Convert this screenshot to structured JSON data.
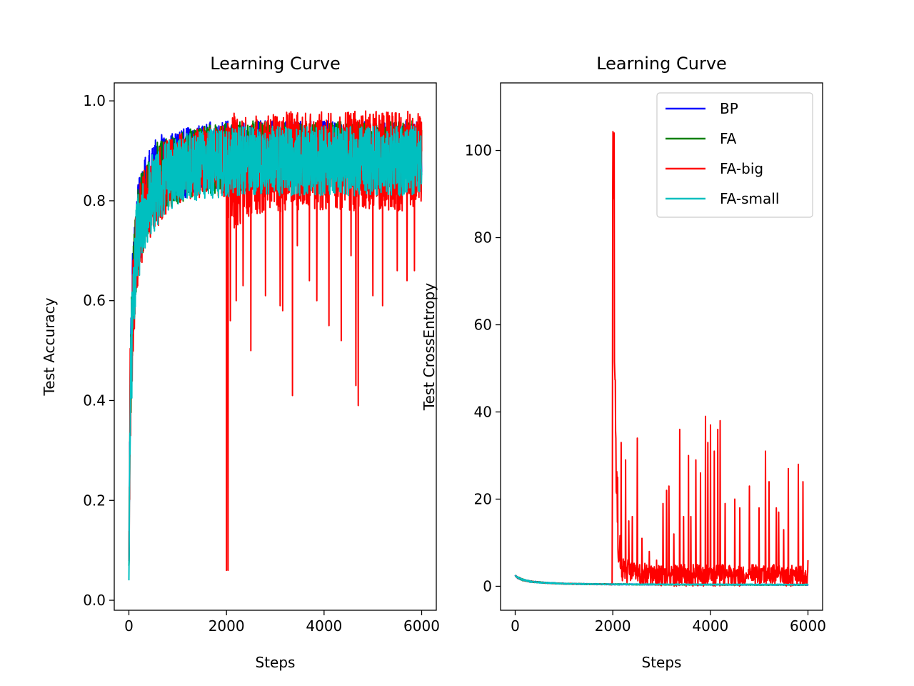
{
  "chart_data": [
    {
      "type": "line",
      "title": "Learning Curve",
      "xlabel": "Steps",
      "ylabel": "Test Accuracy",
      "xlim": [
        -300,
        6300
      ],
      "ylim": [
        -0.02,
        1.036
      ],
      "xticks": [
        0,
        2000,
        4000,
        6000
      ],
      "xtick_labels": [
        "0",
        "2000",
        "4000",
        "6000"
      ],
      "yticks": [
        0.0,
        0.2,
        0.4,
        0.6,
        0.8,
        1.0
      ],
      "ytick_labels": [
        "0.0",
        "0.2",
        "0.4",
        "0.6",
        "0.8",
        "1.0"
      ],
      "grid": false,
      "legend": null,
      "series": [
        {
          "name": "BP",
          "color": "#0000ff",
          "x": [
            0,
            30,
            80,
            150,
            250,
            400,
            600,
            900,
            1300,
            1800,
            2500,
            3500,
            4500,
            5500,
            6000
          ],
          "y": [
            0.07,
            0.45,
            0.62,
            0.72,
            0.78,
            0.82,
            0.85,
            0.87,
            0.88,
            0.89,
            0.89,
            0.9,
            0.9,
            0.9,
            0.9
          ],
          "noise": [
            0.02,
            0.12,
            0.1,
            0.09,
            0.09,
            0.08,
            0.08,
            0.07,
            0.07,
            0.07,
            0.07,
            0.06,
            0.06,
            0.06,
            0.06
          ],
          "max": 0.99,
          "spikes": []
        },
        {
          "name": "FA",
          "color": "#008000",
          "x": [
            0,
            30,
            80,
            150,
            250,
            400,
            600,
            900,
            1300,
            1800,
            2500,
            3500,
            4500,
            5500,
            6000
          ],
          "y": [
            0.06,
            0.44,
            0.6,
            0.71,
            0.77,
            0.81,
            0.84,
            0.86,
            0.875,
            0.885,
            0.89,
            0.895,
            0.9,
            0.9,
            0.9
          ],
          "noise": [
            0.02,
            0.12,
            0.1,
            0.09,
            0.09,
            0.08,
            0.08,
            0.07,
            0.07,
            0.07,
            0.07,
            0.06,
            0.06,
            0.06,
            0.06
          ],
          "max": 0.99,
          "spikes": []
        },
        {
          "name": "FA-big",
          "color": "#ff0000",
          "x": [
            0,
            30,
            80,
            150,
            250,
            400,
            600,
            900,
            1300,
            1800,
            2000,
            2010,
            2100,
            2500,
            3500,
            4500,
            5500,
            6000
          ],
          "y": [
            0.07,
            0.42,
            0.58,
            0.7,
            0.76,
            0.8,
            0.83,
            0.86,
            0.875,
            0.88,
            0.88,
            0.86,
            0.86,
            0.87,
            0.88,
            0.88,
            0.88,
            0.88
          ],
          "noise": [
            0.02,
            0.12,
            0.1,
            0.09,
            0.09,
            0.08,
            0.08,
            0.07,
            0.07,
            0.07,
            0.08,
            0.1,
            0.12,
            0.1,
            0.1,
            0.1,
            0.1,
            0.1
          ],
          "max": 0.99,
          "spikes": [
            [
              2000,
              0.06
            ],
            [
              2030,
              0.06
            ],
            [
              2080,
              0.56
            ],
            [
              2200,
              0.6
            ],
            [
              2340,
              0.63
            ],
            [
              2500,
              0.5
            ],
            [
              2800,
              0.61
            ],
            [
              3100,
              0.59
            ],
            [
              3150,
              0.58
            ],
            [
              3350,
              0.41
            ],
            [
              3450,
              0.71
            ],
            [
              3700,
              0.64
            ],
            [
              3850,
              0.6
            ],
            [
              4100,
              0.55
            ],
            [
              4350,
              0.52
            ],
            [
              4550,
              0.69
            ],
            [
              4650,
              0.43
            ],
            [
              4700,
              0.39
            ],
            [
              5000,
              0.61
            ],
            [
              5200,
              0.59
            ],
            [
              5500,
              0.66
            ],
            [
              5700,
              0.64
            ],
            [
              5850,
              0.66
            ]
          ]
        },
        {
          "name": "FA-small",
          "color": "#00bfbf",
          "x": [
            0,
            30,
            80,
            150,
            250,
            400,
            600,
            900,
            1300,
            1800,
            2500,
            3500,
            4500,
            5500,
            6000
          ],
          "y": [
            0.03,
            0.4,
            0.58,
            0.7,
            0.76,
            0.8,
            0.83,
            0.855,
            0.87,
            0.875,
            0.88,
            0.88,
            0.88,
            0.88,
            0.88
          ],
          "noise": [
            0.02,
            0.12,
            0.1,
            0.09,
            0.09,
            0.08,
            0.08,
            0.07,
            0.07,
            0.07,
            0.07,
            0.07,
            0.07,
            0.07,
            0.07
          ],
          "max": 0.96,
          "spikes": []
        }
      ]
    },
    {
      "type": "line",
      "title": "Learning Curve",
      "xlabel": "Steps",
      "ylabel": "Test CrossEntropy",
      "xlim": [
        -300,
        6300
      ],
      "ylim": [
        -5.5,
        115.5
      ],
      "xticks": [
        0,
        2000,
        4000,
        6000
      ],
      "xtick_labels": [
        "0",
        "2000",
        "4000",
        "6000"
      ],
      "yticks": [
        0,
        20,
        40,
        60,
        80,
        100
      ],
      "ytick_labels": [
        "0",
        "20",
        "40",
        "60",
        "80",
        "100"
      ],
      "grid": false,
      "legend": "top-right",
      "series": [
        {
          "name": "BP",
          "color": "#0000ff",
          "x": [
            0,
            50,
            150,
            300,
            600,
            1000,
            1500,
            2000,
            3000,
            4000,
            5000,
            6000
          ],
          "y": [
            2.5,
            2.0,
            1.5,
            1.1,
            0.8,
            0.6,
            0.5,
            0.45,
            0.4,
            0.38,
            0.36,
            0.35
          ],
          "noise": [
            0.1,
            0.2,
            0.2,
            0.15,
            0.12,
            0.1,
            0.1,
            0.1,
            0.1,
            0.1,
            0.1,
            0.1
          ],
          "spikes": []
        },
        {
          "name": "FA",
          "color": "#008000",
          "x": [
            0,
            50,
            150,
            300,
            600,
            1000,
            1500,
            2000,
            3000,
            4000,
            5000,
            6000
          ],
          "y": [
            2.5,
            2.0,
            1.5,
            1.1,
            0.8,
            0.6,
            0.5,
            0.45,
            0.4,
            0.38,
            0.36,
            0.35
          ],
          "noise": [
            0.1,
            0.2,
            0.2,
            0.15,
            0.12,
            0.1,
            0.1,
            0.1,
            0.1,
            0.1,
            0.1,
            0.1
          ],
          "spikes": []
        },
        {
          "name": "FA-big",
          "color": "#ff0000",
          "x": [
            0,
            50,
            150,
            300,
            600,
            1000,
            1500,
            1990,
            2000,
            2020,
            2040,
            2080,
            2120,
            2200,
            2400,
            3000,
            4000,
            5000,
            6000
          ],
          "y": [
            2.5,
            2.0,
            1.5,
            1.1,
            0.8,
            0.6,
            0.5,
            0.45,
            110,
            90,
            49,
            20,
            10,
            4,
            3,
            2.5,
            2.5,
            2.5,
            2.5
          ],
          "noise": [
            0.1,
            0.2,
            0.2,
            0.15,
            0.12,
            0.1,
            0.1,
            0.1,
            0,
            10,
            12,
            8,
            5,
            3,
            2.5,
            2.5,
            2.5,
            2.5,
            2.5
          ],
          "spikes": [
            [
              2030,
              104
            ],
            [
              2100,
              25
            ],
            [
              2170,
              33
            ],
            [
              2260,
              29
            ],
            [
              2330,
              15
            ],
            [
              2400,
              16
            ],
            [
              2500,
              34
            ],
            [
              2600,
              11
            ],
            [
              2750,
              8
            ],
            [
              2900,
              6
            ],
            [
              3030,
              19
            ],
            [
              3100,
              22
            ],
            [
              3150,
              23
            ],
            [
              3250,
              12
            ],
            [
              3370,
              36
            ],
            [
              3450,
              16
            ],
            [
              3550,
              30
            ],
            [
              3600,
              16
            ],
            [
              3700,
              29
            ],
            [
              3800,
              26
            ],
            [
              3900,
              39
            ],
            [
              3950,
              33
            ],
            [
              4000,
              37
            ],
            [
              4080,
              31
            ],
            [
              4150,
              36
            ],
            [
              4200,
              38
            ],
            [
              4300,
              19
            ],
            [
              4500,
              20
            ],
            [
              4600,
              18
            ],
            [
              4800,
              23
            ],
            [
              5000,
              18
            ],
            [
              5130,
              31
            ],
            [
              5200,
              24
            ],
            [
              5350,
              18
            ],
            [
              5400,
              17
            ],
            [
              5500,
              13
            ],
            [
              5600,
              27
            ],
            [
              5800,
              28
            ],
            [
              5900,
              24
            ],
            [
              6000,
              6
            ]
          ]
        },
        {
          "name": "FA-small",
          "color": "#00bfbf",
          "x": [
            0,
            50,
            150,
            300,
            600,
            1000,
            1500,
            2000,
            3000,
            4000,
            5000,
            6000
          ],
          "y": [
            2.5,
            2.0,
            1.5,
            1.1,
            0.8,
            0.6,
            0.5,
            0.45,
            0.42,
            0.4,
            0.38,
            0.37
          ],
          "noise": [
            0.1,
            0.2,
            0.2,
            0.15,
            0.12,
            0.1,
            0.1,
            0.1,
            0.1,
            0.1,
            0.1,
            0.1
          ],
          "spikes": []
        }
      ]
    }
  ]
}
